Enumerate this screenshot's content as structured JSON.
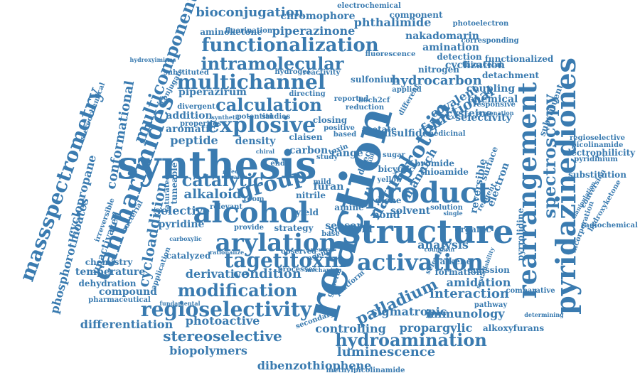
{
  "cloud": {
    "colors": {
      "word": "#3a7bb0",
      "background": "#ffffff"
    },
    "words": [
      {
        "text": "reaction"
      },
      {
        "text": "synthesis"
      },
      {
        "text": "structure"
      },
      {
        "text": "product"
      },
      {
        "text": "alcohol"
      },
      {
        "text": "rearrangement"
      },
      {
        "text": "pyridazinediones"
      },
      {
        "text": "cantharimides"
      },
      {
        "text": "massspectrometry"
      },
      {
        "text": "arylation"
      },
      {
        "text": "activation"
      },
      {
        "text": "tagetitoxin"
      },
      {
        "text": "regioselectivity"
      },
      {
        "text": "functionalization"
      },
      {
        "text": "multichannel"
      },
      {
        "text": "intramolecular"
      },
      {
        "text": "calculation"
      },
      {
        "text": "explosive"
      },
      {
        "text": "protein"
      },
      {
        "text": "group"
      },
      {
        "text": "catalytic"
      },
      {
        "text": "spectroscopy"
      },
      {
        "text": "modification"
      },
      {
        "text": "hydroamination"
      },
      {
        "text": "stereoselective"
      },
      {
        "text": "multicomponent"
      },
      {
        "text": "cycloaddition"
      },
      {
        "text": "bioconjugation"
      },
      {
        "text": "piperazinone"
      },
      {
        "text": "hydrocarbon"
      },
      {
        "text": "palladium"
      },
      {
        "text": "conformational"
      },
      {
        "text": "phosphorothioates"
      },
      {
        "text": "cyclopropane"
      },
      {
        "text": "luminescence"
      },
      {
        "text": "dibenzothiophene"
      },
      {
        "text": "natural"
      },
      {
        "text": "functional"
      },
      {
        "text": "chromophore"
      },
      {
        "text": "phthalimide"
      },
      {
        "text": "alkaloid"
      },
      {
        "text": "condition"
      },
      {
        "text": "derivative"
      },
      {
        "text": "amidation"
      },
      {
        "text": "interaction"
      },
      {
        "text": "sigmatropic"
      },
      {
        "text": "immunology"
      },
      {
        "text": "photoactive"
      },
      {
        "text": "controlling"
      },
      {
        "text": "propargylic"
      },
      {
        "text": "analysis"
      },
      {
        "text": "mannich"
      },
      {
        "text": "electrochemical"
      },
      {
        "text": "aminoketone"
      },
      {
        "text": "nakadomarin"
      },
      {
        "text": "amination"
      },
      {
        "text": "detection"
      },
      {
        "text": "cyclization"
      },
      {
        "text": "nitrogen"
      },
      {
        "text": "covalent"
      },
      {
        "text": "selectivity"
      },
      {
        "text": "surface"
      },
      {
        "text": "electron"
      },
      {
        "text": "reversible"
      },
      {
        "text": "substituent"
      },
      {
        "text": "pyridinium"
      },
      {
        "text": "regioselective"
      },
      {
        "text": "picolinamide"
      },
      {
        "text": "electrophilicity"
      },
      {
        "text": "substitution"
      },
      {
        "text": "hydroxyketone"
      },
      {
        "text": "conversion"
      },
      {
        "text": "pyrrolidine"
      },
      {
        "text": "incorporation"
      },
      {
        "text": "selective"
      },
      {
        "text": "pyridine"
      },
      {
        "text": "unactivated"
      },
      {
        "text": "irreversible"
      },
      {
        "text": "chemistry"
      },
      {
        "text": "temperature"
      },
      {
        "text": "dehydration"
      },
      {
        "text": "compound"
      },
      {
        "text": "differentiation"
      },
      {
        "text": "biopolymers"
      },
      {
        "text": "pharmaceutical"
      },
      {
        "text": "fundamental"
      },
      {
        "text": "stereochemical"
      },
      {
        "text": "hydroxyimines"
      },
      {
        "text": "methylpicolinamide"
      },
      {
        "text": "alkoxyfurans"
      },
      {
        "text": "determining"
      },
      {
        "text": "comparative"
      },
      {
        "text": "pathway"
      },
      {
        "text": "emission"
      },
      {
        "text": "organic"
      },
      {
        "text": "density"
      },
      {
        "text": "peptide"
      },
      {
        "text": "carbon"
      },
      {
        "text": "addition"
      },
      {
        "text": "piperazirum"
      },
      {
        "text": "aromatic"
      },
      {
        "text": "furan"
      },
      {
        "text": "amine"
      },
      {
        "text": "bond"
      },
      {
        "text": "solvent"
      },
      {
        "text": "nitrile"
      },
      {
        "text": "yield"
      },
      {
        "text": "scaffold"
      },
      {
        "text": "thioacetal"
      },
      {
        "text": "functionalized"
      },
      {
        "text": "detachment"
      },
      {
        "text": "coupling"
      },
      {
        "text": "chemical"
      },
      {
        "text": "cysteine"
      },
      {
        "text": "sulfonium"
      },
      {
        "text": "component"
      },
      {
        "text": "photoelectron"
      },
      {
        "text": "fluorination"
      },
      {
        "text": "conjugate"
      },
      {
        "text": "substituted"
      },
      {
        "text": "hydrogel"
      },
      {
        "text": "reactivity"
      },
      {
        "text": "range"
      },
      {
        "text": "toxin"
      },
      {
        "text": "disulfide"
      },
      {
        "text": "acetate"
      },
      {
        "text": "secondary"
      },
      {
        "text": "general"
      },
      {
        "text": "radiochemical"
      },
      {
        "text": "manipulation"
      },
      {
        "text": "tuneable"
      },
      {
        "text": "bacterial"
      },
      {
        "text": "catalyzed"
      },
      {
        "text": "alkene"
      },
      {
        "text": "formation"
      },
      {
        "text": "thioamide"
      },
      {
        "text": "reagent"
      },
      {
        "text": "sensor"
      },
      {
        "text": "strategy"
      },
      {
        "text": "base"
      },
      {
        "text": "mild"
      },
      {
        "text": "endo"
      },
      {
        "text": "diene"
      },
      {
        "text": "sugar"
      },
      {
        "text": "bromide"
      },
      {
        "text": "claisen"
      },
      {
        "text": "study"
      },
      {
        "text": "medicinal"
      },
      {
        "text": "properties"
      },
      {
        "text": "divergent"
      },
      {
        "text": "synthetic"
      },
      {
        "text": "potential"
      },
      {
        "text": "studies"
      },
      {
        "text": "closing"
      },
      {
        "text": "boch2cf"
      },
      {
        "text": "reduction"
      },
      {
        "text": "directing"
      },
      {
        "text": "reported"
      },
      {
        "text": "applied"
      },
      {
        "text": "responsive"
      },
      {
        "text": "fluorescence"
      },
      {
        "text": "corresponding"
      },
      {
        "text": "observed"
      },
      {
        "text": "processes"
      },
      {
        "text": "relevant"
      },
      {
        "text": "saturated"
      },
      {
        "text": "application"
      },
      {
        "text": "provide"
      },
      {
        "text": "bicyclic"
      },
      {
        "text": "yellow"
      },
      {
        "text": "single"
      },
      {
        "text": "sustainability"
      },
      {
        "text": "mechanism"
      },
      {
        "text": "platform"
      },
      {
        "text": "rationalize"
      },
      {
        "text": "carboxylic"
      },
      {
        "text": "direct"
      },
      {
        "text": "stable"
      },
      {
        "text": "agent"
      },
      {
        "text": "room"
      },
      {
        "text": "effect"
      },
      {
        "text": "charge"
      },
      {
        "text": "positive"
      },
      {
        "text": "based"
      },
      {
        "text": "coumarin"
      },
      {
        "text": "solution"
      },
      {
        "text": "different"
      },
      {
        "text": "selection"
      },
      {
        "text": "protonation"
      },
      {
        "text": "chiral"
      },
      {
        "text": "neutral"
      }
    ]
  }
}
